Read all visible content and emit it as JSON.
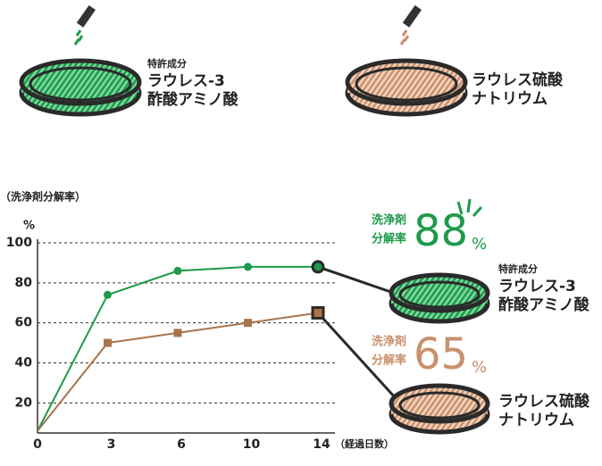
{
  "top_items": [
    {
      "tag": "特許成分",
      "lines": [
        "ラウレス-3",
        "酢酸アミノ酸"
      ],
      "color": "#1e9a4a"
    },
    {
      "lines": [
        "ラウレス硫酸",
        "ナトリウム"
      ],
      "color": "#c9906c"
    }
  ],
  "chart_data": {
    "type": "line",
    "ylabel": "（洗浄剤分解率）",
    "yunit": "%",
    "xlabel": "（経過日数）",
    "categories": [
      "0",
      "3",
      "6",
      "10",
      "14"
    ],
    "series": [
      {
        "color": "#1e9a4a",
        "marker": "circle",
        "values": [
          6,
          74,
          86,
          88,
          88
        ]
      },
      {
        "color": "#a8744c",
        "marker": "square",
        "values": [
          6,
          50,
          55,
          60,
          65
        ]
      }
    ],
    "ylim": [
      5,
      100
    ],
    "yticks": [
      20,
      40,
      60,
      80,
      100
    ],
    "grid": true
  },
  "callouts": [
    {
      "caption": [
        "洗浄剤",
        "分解率"
      ],
      "value": 88,
      "unit": "%",
      "color": "#1e9a4a",
      "tag": "特許成分",
      "lines": [
        "ラウレス-3",
        "酢酸アミノ酸"
      ]
    },
    {
      "caption": [
        "洗浄剤",
        "分解率"
      ],
      "value": 65,
      "unit": "%",
      "color": "#c9906c",
      "lines": [
        "ラウレス硫酸",
        "ナトリウム"
      ]
    }
  ]
}
